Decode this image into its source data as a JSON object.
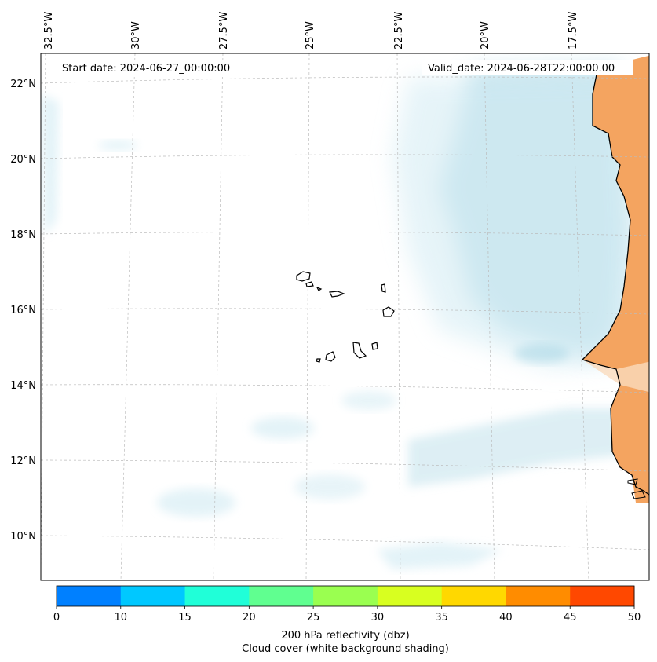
{
  "map": {
    "start_date_label": "Start date: 2024-06-27_00:00:00",
    "valid_date_label": "Valid_date: 2024-06-28T22:00:00.00",
    "lon_ticks": [
      "32.5°W",
      "30°W",
      "27.5°W",
      "25°W",
      "22.5°W",
      "20°W",
      "17.5°W"
    ],
    "lat_ticks": [
      "22°N",
      "20°N",
      "18°N",
      "16°N",
      "14°N",
      "12°N",
      "10°N"
    ],
    "colors": {
      "cloud": "#acd8e6",
      "land_reflectivity": "#f4a460",
      "coastline": "#000000",
      "grid": "#bbbbbb"
    }
  },
  "colorbar": {
    "ticks": [
      "0",
      "10",
      "15",
      "20",
      "25",
      "30",
      "35",
      "40",
      "45",
      "50"
    ],
    "colors": [
      "#0080ff",
      "#00c8ff",
      "#20ffd8",
      "#60ff90",
      "#9aff50",
      "#d8ff20",
      "#ffd800",
      "#ff8c00",
      "#ff4800"
    ],
    "label_line1": "200 hPa reflectivity (dbz)",
    "label_line2": "Cloud cover (white background shading)"
  }
}
